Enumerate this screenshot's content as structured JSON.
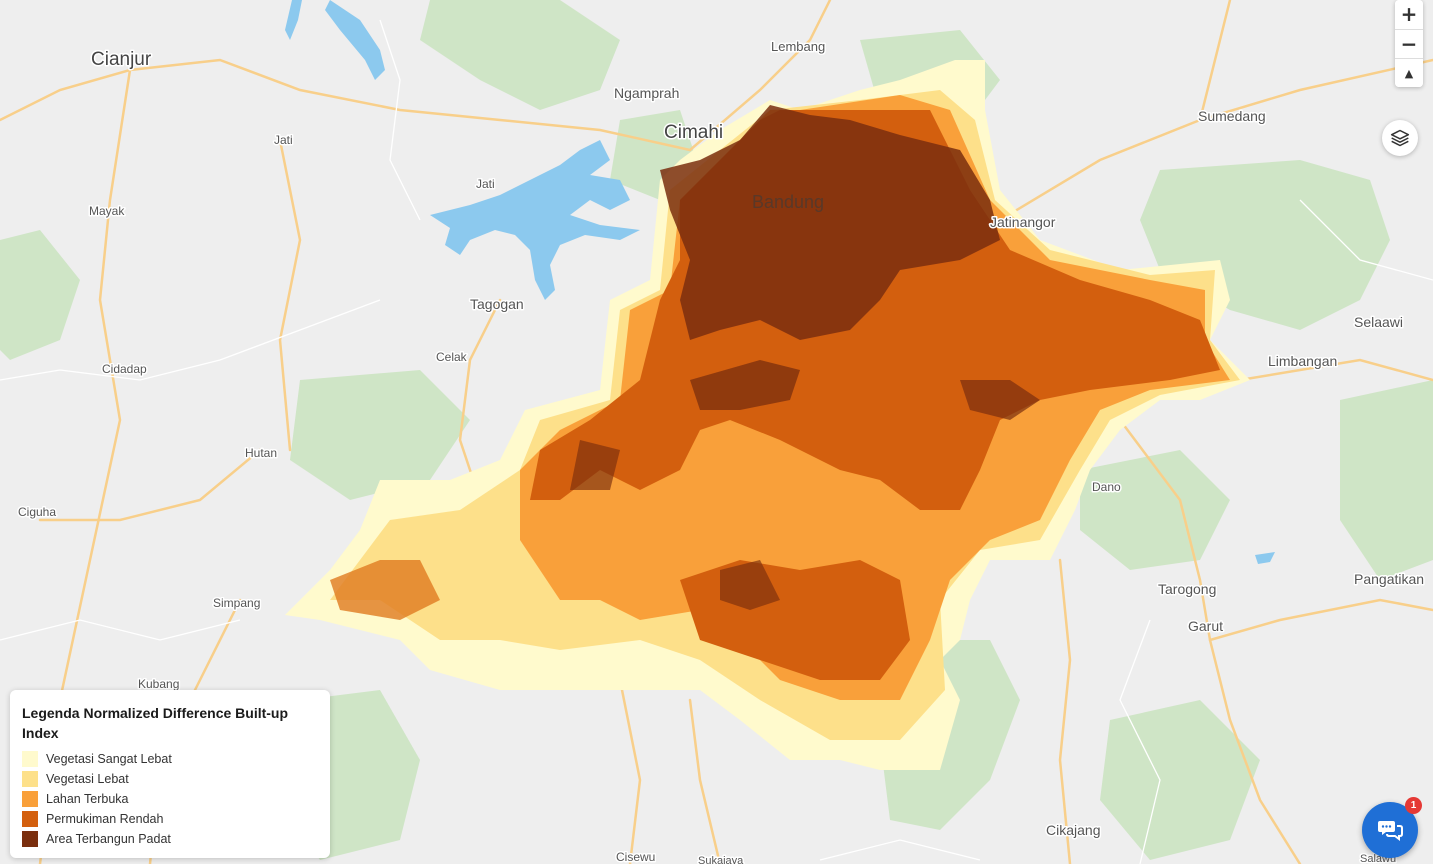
{
  "map": {
    "places": [
      {
        "id": "cianjur",
        "name": "Cianjur"
      },
      {
        "id": "lembang",
        "name": "Lembang"
      },
      {
        "id": "ngamprah",
        "name": "Ngamprah"
      },
      {
        "id": "cimahi",
        "name": "Cimahi"
      },
      {
        "id": "sumedang",
        "name": "Sumedang"
      },
      {
        "id": "jati1",
        "name": "Jati"
      },
      {
        "id": "jati2",
        "name": "Jati"
      },
      {
        "id": "mayak",
        "name": "Mayak"
      },
      {
        "id": "bandung",
        "name": "Bandung"
      },
      {
        "id": "jatinangor",
        "name": "Jatinangor"
      },
      {
        "id": "tagogan",
        "name": "Tagogan"
      },
      {
        "id": "selaawi",
        "name": "Selaawi"
      },
      {
        "id": "celak",
        "name": "Celak"
      },
      {
        "id": "limbangan",
        "name": "Limbangan"
      },
      {
        "id": "cidadap",
        "name": "Cidadap"
      },
      {
        "id": "hutan",
        "name": "Hutan"
      },
      {
        "id": "dano",
        "name": "Dano"
      },
      {
        "id": "ciguha",
        "name": "Ciguha"
      },
      {
        "id": "tarogong",
        "name": "Tarogong"
      },
      {
        "id": "pangatikan",
        "name": "Pangatikan"
      },
      {
        "id": "simpang",
        "name": "Simpang"
      },
      {
        "id": "garut",
        "name": "Garut"
      },
      {
        "id": "kubang",
        "name": "Kubang"
      },
      {
        "id": "cikajang",
        "name": "Cikajang"
      },
      {
        "id": "cisewu",
        "name": "Cisewu"
      },
      {
        "id": "sukajaya",
        "name": "Sukajaya"
      },
      {
        "id": "salawu",
        "name": "Salawu"
      }
    ]
  },
  "controls": {
    "zoom_in": "+",
    "zoom_out": "−",
    "reset_north": "▲"
  },
  "legend": {
    "title": "Legenda Normalized Difference Built-up Index",
    "items": [
      {
        "label": "Vegetasi Sangat Lebat",
        "color": "#fffacd"
      },
      {
        "label": "Vegetasi Lebat",
        "color": "#fde08a"
      },
      {
        "label": "Lahan Terbuka",
        "color": "#f9a03a"
      },
      {
        "label": "Permukiman Rendah",
        "color": "#d35f0e"
      },
      {
        "label": "Area Terbangun Padat",
        "color": "#7a2e0e"
      }
    ]
  },
  "chat": {
    "badge": "1"
  },
  "colors": {
    "background": "#eeeeee",
    "forest": "#cfe5c6",
    "water": "#8cc9ee",
    "road": "#f8cf8a"
  }
}
